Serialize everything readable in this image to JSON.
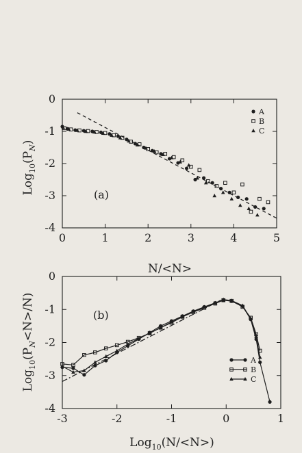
{
  "chart_data": [
    {
      "type": "scatter",
      "panel_label": "(a)",
      "xlabel": "N/<N>",
      "ylabel_main": "Log",
      "ylabel_sub": "10",
      "ylabel_tail": "(P",
      "ylabel_sub2": "N",
      "ylabel_end": ")",
      "xlim": [
        0,
        5
      ],
      "ylim": [
        -4,
        0
      ],
      "xticks": [
        "0",
        "1",
        "2",
        "3",
        "4",
        "5"
      ],
      "yticks": [
        "0",
        "-1",
        "-2",
        "-3",
        "-4"
      ],
      "legend": {
        "position": "top-right",
        "entries": [
          "A",
          "B",
          "C"
        ]
      },
      "fit_line": {
        "style": "dashed",
        "x": [
          0.35,
          5.0
        ],
        "y": [
          -0.42,
          -3.7
        ]
      },
      "series": [
        {
          "name": "A",
          "marker": "filled-circle",
          "x": [
            0.0,
            0.12,
            0.3,
            0.5,
            0.7,
            0.9,
            1.1,
            1.3,
            1.5,
            1.7,
            1.9,
            2.1,
            2.3,
            2.5,
            2.7,
            2.9,
            3.1,
            3.3,
            3.5,
            3.7,
            3.9,
            4.1,
            4.3,
            4.5,
            4.7
          ],
          "y": [
            -0.85,
            -0.92,
            -0.96,
            -0.98,
            -1.0,
            -1.03,
            -1.08,
            -1.15,
            -1.25,
            -1.38,
            -1.5,
            -1.6,
            -1.7,
            -1.85,
            -1.98,
            -2.15,
            -2.5,
            -2.45,
            -2.6,
            -2.78,
            -2.9,
            -3.05,
            -3.1,
            -3.35,
            -3.4
          ]
        },
        {
          "name": "B",
          "marker": "open-square",
          "x": [
            0.05,
            0.2,
            0.4,
            0.6,
            0.8,
            1.0,
            1.2,
            1.4,
            1.6,
            1.8,
            2.0,
            2.2,
            2.4,
            2.6,
            2.8,
            3.0,
            3.2,
            3.4,
            3.6,
            3.8,
            4.0,
            4.2,
            4.4,
            4.6,
            4.8
          ],
          "y": [
            -0.9,
            -0.94,
            -0.97,
            -0.99,
            -1.02,
            -1.05,
            -1.12,
            -1.2,
            -1.32,
            -1.4,
            -1.55,
            -1.65,
            -1.7,
            -1.8,
            -1.9,
            -2.1,
            -2.2,
            -2.55,
            -2.7,
            -2.6,
            -2.9,
            -2.65,
            -3.5,
            -3.1,
            -3.2
          ]
        },
        {
          "name": "C",
          "marker": "filled-triangle",
          "x": [
            0.02,
            0.15,
            0.35,
            0.55,
            0.75,
            0.95,
            1.15,
            1.35,
            1.55,
            1.75,
            1.95,
            2.15,
            2.35,
            2.55,
            2.75,
            2.95,
            3.15,
            3.35,
            3.55,
            3.75,
            3.95,
            4.15,
            4.35,
            4.55
          ],
          "y": [
            -0.88,
            -0.93,
            -0.97,
            -1.0,
            -1.02,
            -1.06,
            -1.12,
            -1.2,
            -1.3,
            -1.42,
            -1.52,
            -1.62,
            -1.72,
            -1.82,
            -1.95,
            -2.05,
            -2.45,
            -2.6,
            -3.0,
            -2.9,
            -3.1,
            -3.3,
            -3.4,
            -3.6
          ]
        }
      ]
    },
    {
      "type": "line",
      "panel_label": "(b)",
      "xlabel_main": "Log",
      "xlabel_sub": "10",
      "xlabel_tail": "(N/<N>)",
      "ylabel_main": "Log",
      "ylabel_sub": "10",
      "ylabel_tail": "(P",
      "ylabel_sub2": "N",
      "ylabel_end": "<N>/N)",
      "xlim": [
        -3,
        1
      ],
      "ylim": [
        -4,
        0
      ],
      "xticks": [
        "-3",
        "-2",
        "-1",
        "0",
        "1"
      ],
      "yticks": [
        "0",
        "-1",
        "-2",
        "-3",
        "-4"
      ],
      "legend": {
        "position": "bottom-right",
        "entries": [
          "A",
          "B",
          "C"
        ]
      },
      "fit_line": {
        "style": "dash-dot",
        "x": [
          -3.0,
          -0.1
        ],
        "y": [
          -3.18,
          -0.72
        ]
      },
      "series": [
        {
          "name": "A",
          "marker": "filled-circle",
          "x": [
            -3.0,
            -2.8,
            -2.6,
            -2.4,
            -2.2,
            -2.0,
            -1.8,
            -1.6,
            -1.4,
            -1.2,
            -1.0,
            -0.8,
            -0.6,
            -0.4,
            -0.2,
            -0.05,
            0.1,
            0.3,
            0.45,
            0.55,
            0.62,
            0.8
          ],
          "y": [
            -2.75,
            -2.78,
            -2.98,
            -2.7,
            -2.55,
            -2.3,
            -2.1,
            -1.9,
            -1.7,
            -1.5,
            -1.35,
            -1.2,
            -1.05,
            -0.92,
            -0.8,
            -0.72,
            -0.75,
            -0.9,
            -1.3,
            -1.9,
            -2.6,
            -3.8
          ]
        },
        {
          "name": "B",
          "marker": "open-square",
          "x": [
            -3.0,
            -2.8,
            -2.6,
            -2.4,
            -2.2,
            -2.0,
            -1.8,
            -1.6,
            -1.4,
            -1.2,
            -1.0,
            -0.8,
            -0.6,
            -0.4,
            -0.2,
            -0.05,
            0.1,
            0.3,
            0.45,
            0.55,
            0.62
          ],
          "y": [
            -2.65,
            -2.68,
            -2.38,
            -2.3,
            -2.18,
            -2.08,
            -1.98,
            -1.86,
            -1.72,
            -1.55,
            -1.4,
            -1.22,
            -1.08,
            -0.95,
            -0.82,
            -0.72,
            -0.74,
            -0.92,
            -1.25,
            -1.75,
            -2.25
          ]
        },
        {
          "name": "C",
          "marker": "filled-triangle",
          "x": [
            -3.0,
            -2.8,
            -2.6,
            -2.4,
            -2.2,
            -2.0,
            -1.8,
            -1.6,
            -1.4,
            -1.2,
            -1.0,
            -0.8,
            -0.6,
            -0.4,
            -0.2,
            -0.05,
            0.1,
            0.3,
            0.45,
            0.55,
            0.62
          ],
          "y": [
            -2.72,
            -2.9,
            -2.85,
            -2.6,
            -2.42,
            -2.25,
            -2.05,
            -1.88,
            -1.72,
            -1.55,
            -1.38,
            -1.22,
            -1.06,
            -0.93,
            -0.8,
            -0.7,
            -0.73,
            -0.88,
            -1.28,
            -1.82,
            -2.45
          ]
        }
      ]
    }
  ]
}
